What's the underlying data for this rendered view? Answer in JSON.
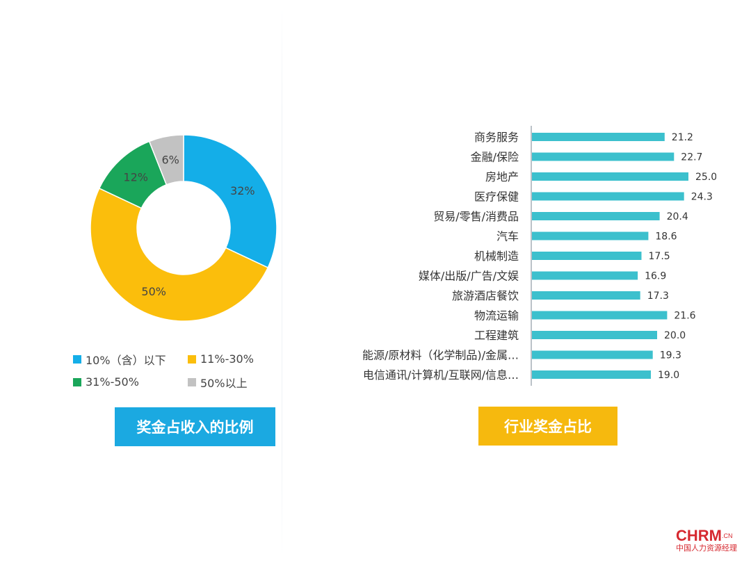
{
  "colors": {
    "blue": "#14aee8",
    "yellow": "#fbbe0c",
    "green": "#1aa65a",
    "gray": "#c2c2c2",
    "teal": "#3cc0cd",
    "caption_blue": "#1ba9e1",
    "caption_yellow": "#f6b90e",
    "logo_red": "#d6282f"
  },
  "chart_data": [
    {
      "type": "pie",
      "variant": "donut",
      "title": "奖金占收入的比例",
      "slices": [
        {
          "label": "10%（含）以下",
          "value": 32,
          "data_label": "32%",
          "color": "#14aee8"
        },
        {
          "label": "11%-30%",
          "value": 50,
          "data_label": "50%",
          "color": "#fbbe0c"
        },
        {
          "label": "31%-50%",
          "value": 12,
          "data_label": "12%",
          "color": "#1aa65a"
        },
        {
          "label": "50%以上",
          "value": 6,
          "data_label": "6%",
          "color": "#c2c2c2"
        }
      ],
      "legend_position": "bottom"
    },
    {
      "type": "bar",
      "orientation": "horizontal",
      "title": "行业奖金占比",
      "categories": [
        "商务服务",
        "金融/保险",
        "房地产",
        "医疗保健",
        "贸易/零售/消费品",
        "汽车",
        "机械制造",
        "媒体/出版/广告/文娱",
        "旅游酒店餐饮",
        "物流运输",
        "工程建筑",
        "能源/原材料（化学制品)/金属…",
        "电信通讯/计算机/互联网/信息…"
      ],
      "values": [
        21.2,
        22.7,
        25.0,
        24.3,
        20.4,
        18.6,
        17.5,
        16.9,
        17.3,
        21.6,
        20.0,
        19.3,
        19.0
      ],
      "value_labels": [
        "21.2",
        "22.7",
        "25.0",
        "24.3",
        "20.4",
        "18.6",
        "17.5",
        "16.9",
        "17.3",
        "21.6",
        "20.0",
        "19.3",
        "19.0"
      ],
      "xlim": [
        0,
        25.0
      ],
      "grid": false,
      "color": "#3cc0cd"
    }
  ],
  "captions": {
    "left": "奖金占收入的比例",
    "right": "行业奖金占比"
  },
  "logo": {
    "main": "CHRM",
    "suffix": ".CN",
    "subtitle": "中国人力资源经理"
  }
}
